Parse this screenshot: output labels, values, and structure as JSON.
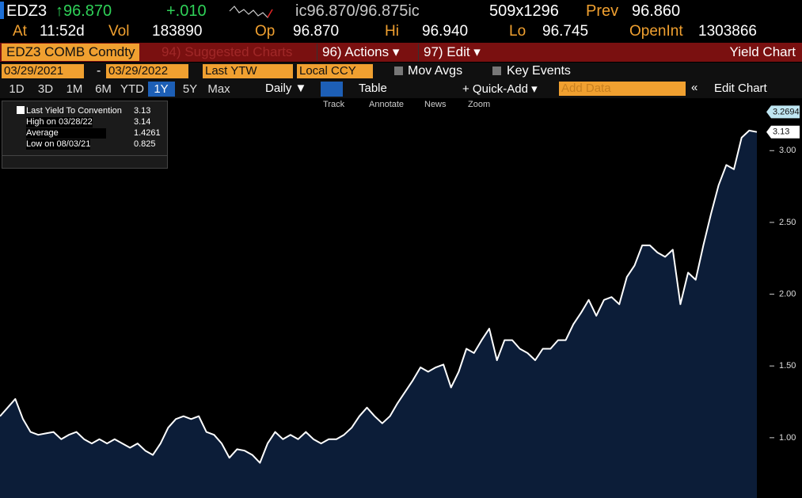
{
  "header": {
    "ticker": "EDZ3",
    "last": "↑96.870",
    "change": "+.010",
    "bid_ask": "ic96.870/96.875ic",
    "size": "509x1296",
    "prev_label": "Prev",
    "prev": "96.860",
    "time_label": "At",
    "time": "11:52d",
    "vol_label": "Vol",
    "vol": "183890",
    "open_label": "Op",
    "open": "96.870",
    "high_label": "Hi",
    "high": "96.940",
    "low_label": "Lo",
    "low": "96.745",
    "oi_label": "OpenInt",
    "oi": "1303866"
  },
  "tabs": {
    "security": "EDZ3 COMB Comdty",
    "suggested": "94) Suggested Charts",
    "actions": "96) Actions ▾",
    "edit": "97) Edit ▾",
    "title": "Yield Chart"
  },
  "controls": {
    "start": "03/29/2021",
    "end": "03/29/2022",
    "field": "Last YTW",
    "currency": "Local CCY",
    "mov_avgs": "Mov Avgs",
    "key_events": "Key Events"
  },
  "periods": [
    "1D",
    "3D",
    "1M",
    "6M",
    "YTD",
    "1Y",
    "5Y",
    "Max"
  ],
  "active_period": 5,
  "toolbar": {
    "frequency": "Daily ▼",
    "table": "Table",
    "quick_add": "+ Quick-Add ▾",
    "add_data": "Add Data",
    "edit_chart": "Edit Chart"
  },
  "chart_tools": [
    "Track",
    "Annotate",
    "News",
    "Zoom"
  ],
  "legend": [
    {
      "label": "Last Yield To Convention",
      "value": "3.13"
    },
    {
      "label": "High on 03/28/22",
      "value": "3.14"
    },
    {
      "label": "Average",
      "value": "1.4261"
    },
    {
      "label": "Low on 08/03/21",
      "value": "0.825"
    }
  ],
  "chart_data": {
    "type": "area",
    "color": "#ffffff",
    "fill": "#0c1d38",
    "values": [
      1.15,
      1.21,
      1.27,
      1.13,
      1.04,
      1.02,
      1.03,
      1.04,
      0.99,
      1.02,
      1.04,
      0.99,
      0.96,
      0.99,
      0.96,
      0.99,
      0.96,
      0.93,
      0.96,
      0.91,
      0.88,
      0.96,
      1.07,
      1.13,
      1.15,
      1.13,
      1.15,
      1.04,
      1.02,
      0.96,
      0.86,
      0.92,
      0.91,
      0.88,
      0.825,
      0.96,
      1.04,
      0.99,
      1.02,
      0.99,
      1.04,
      0.99,
      0.96,
      0.99,
      0.99,
      1.02,
      1.07,
      1.15,
      1.21,
      1.15,
      1.1,
      1.15,
      1.24,
      1.32,
      1.4,
      1.49,
      1.46,
      1.49,
      1.51,
      1.35,
      1.46,
      1.62,
      1.59,
      1.68,
      1.76,
      1.54,
      1.68,
      1.68,
      1.62,
      1.59,
      1.54,
      1.62,
      1.62,
      1.68,
      1.68,
      1.79,
      1.87,
      1.96,
      1.85,
      1.96,
      1.98,
      1.93,
      2.12,
      2.2,
      2.34,
      2.34,
      2.29,
      2.26,
      2.31,
      1.93,
      2.15,
      2.1,
      2.34,
      2.56,
      2.76,
      2.9,
      2.87,
      3.09,
      3.14,
      3.13
    ],
    "ylim": [
      0.58,
      3.36
    ],
    "yticks": [
      {
        "value": 1,
        "label": "1.00"
      },
      {
        "value": 1.5,
        "label": "1.50"
      },
      {
        "value": 2,
        "label": "2.00"
      },
      {
        "value": 2.5,
        "label": "2.50"
      },
      {
        "value": 3,
        "label": "3.00"
      }
    ],
    "axis_tags": [
      3.2694,
      3.13
    ],
    "grid": false
  }
}
